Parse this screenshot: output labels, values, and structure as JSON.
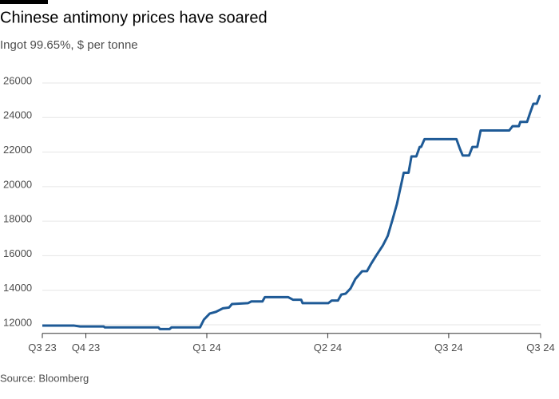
{
  "chart_data": {
    "type": "line",
    "title": "Chinese antimony prices have soared",
    "subtitle": "Ingot 99.65%, $ per tonne",
    "source": "Source: Bloomberg",
    "x": [
      2023.66,
      2023.726,
      2023.738,
      2023.787,
      2023.789,
      2023.9,
      2023.903,
      2023.923,
      2023.927,
      2023.986,
      2023.994,
      2024.006,
      2024.019,
      2024.033,
      2024.046,
      2024.052,
      2024.085,
      2024.092,
      2024.115,
      2024.12,
      2024.168,
      2024.178,
      2024.195,
      2024.198,
      2024.251,
      2024.258,
      2024.271,
      2024.278,
      2024.287,
      2024.297,
      2024.307,
      2024.321,
      2024.331,
      2024.34,
      2024.35,
      2024.364,
      2024.374,
      2024.384,
      2024.393,
      2024.407,
      2024.417,
      2024.423,
      2024.433,
      2024.44,
      2024.443,
      2024.45,
      2024.516,
      2024.523,
      2024.529,
      2024.542,
      2024.549,
      2024.559,
      2024.566,
      2024.625,
      2024.632,
      2024.645,
      2024.648,
      2024.662,
      2024.668,
      2024.675,
      2024.682,
      2024.688,
      2024.69
    ],
    "series": [
      {
        "name": "Ingot 99.65%",
        "color": "#1e5a96",
        "values": [
          11950,
          11950,
          11900,
          11900,
          11850,
          11850,
          11750,
          11750,
          11850,
          11850,
          12300,
          12650,
          12750,
          12950,
          13000,
          13200,
          13250,
          13350,
          13350,
          13600,
          13600,
          13450,
          13450,
          13250,
          13250,
          13400,
          13400,
          13750,
          13800,
          14100,
          14650,
          15100,
          15100,
          15550,
          16000,
          16600,
          17150,
          18100,
          19000,
          20800,
          20800,
          21750,
          21750,
          22300,
          22300,
          22750,
          22750,
          22200,
          21800,
          21800,
          22300,
          22300,
          23250,
          23250,
          23500,
          23500,
          23750,
          23750,
          24250,
          24800,
          24800,
          25250,
          25250
        ]
      }
    ],
    "xlim": [
      2023.66,
      2024.69
    ],
    "xticks": [
      {
        "value": 2023.66,
        "label": "Q3 23"
      },
      {
        "value": 2023.75,
        "label": "Q4 23"
      },
      {
        "value": 2024.0,
        "label": "Q1 24"
      },
      {
        "value": 2024.25,
        "label": "Q2 24"
      },
      {
        "value": 2024.5,
        "label": "Q3 24"
      },
      {
        "value": 2024.69,
        "label": "Q3 24"
      }
    ],
    "ylim": [
      11500,
      26500
    ],
    "yticks": [
      12000,
      14000,
      16000,
      18000,
      20000,
      22000,
      24000,
      26000
    ],
    "grid": true
  }
}
